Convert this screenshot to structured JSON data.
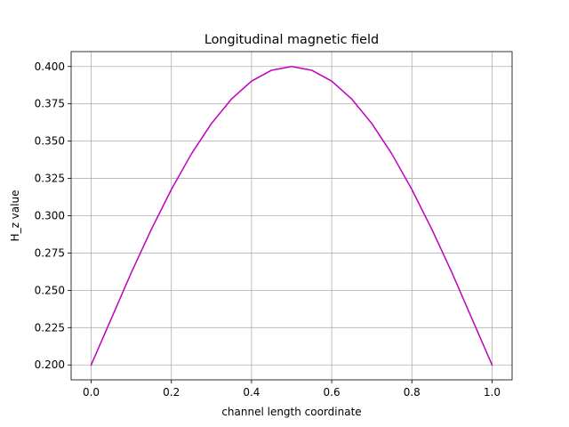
{
  "chart_data": {
    "type": "line",
    "title": "Longitudinal magnetic field",
    "xlabel": "channel length coordinate",
    "ylabel": "H_z value",
    "xlim": [
      -0.05,
      1.05
    ],
    "ylim": [
      0.19,
      0.41
    ],
    "grid": true,
    "x_ticks": [
      0.0,
      0.2,
      0.4,
      0.6,
      0.8,
      1.0
    ],
    "x_tick_labels": [
      "0.0",
      "0.2",
      "0.4",
      "0.6",
      "0.8",
      "1.0"
    ],
    "y_ticks": [
      0.2,
      0.225,
      0.25,
      0.275,
      0.3,
      0.325,
      0.35,
      0.375,
      0.4
    ],
    "y_tick_labels": [
      "0.200",
      "0.225",
      "0.250",
      "0.275",
      "0.300",
      "0.325",
      "0.350",
      "0.375",
      "0.400"
    ],
    "series": [
      {
        "color": "#bf00bf",
        "x": [
          0.0,
          0.05,
          0.1,
          0.15,
          0.2,
          0.25,
          0.3,
          0.35,
          0.4,
          0.45,
          0.5,
          0.55,
          0.6,
          0.65,
          0.7,
          0.75,
          0.8,
          0.85,
          0.9,
          0.95,
          1.0
        ],
        "y": [
          0.2,
          0.2309,
          0.2618,
          0.2908,
          0.3176,
          0.3414,
          0.3618,
          0.3782,
          0.3902,
          0.3975,
          0.4,
          0.3975,
          0.3902,
          0.3782,
          0.3618,
          0.3414,
          0.3176,
          0.2908,
          0.2618,
          0.2309,
          0.2
        ]
      }
    ]
  }
}
